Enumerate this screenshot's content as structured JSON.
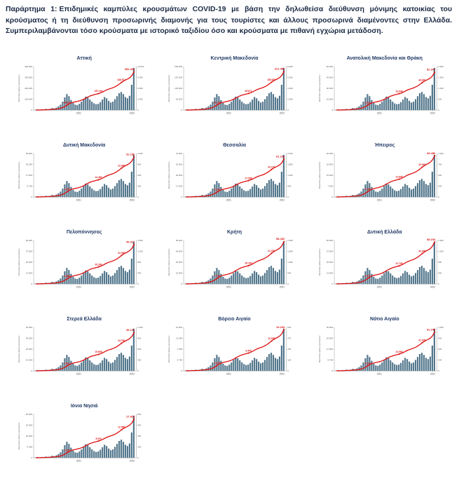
{
  "page": {
    "caption_label": "Παράρτημα 1:",
    "caption_text": "Επιδημικές καμπύλες κρουσμάτων COVID-19 με βάση την δηλωθείσα διεύθυνση μόνιμης κατοικίας του κρούσματος ή τη διεύθυνση προσωρινής διαμονής για τους τουρίστες και άλλους προσωρινά διαμένοντες στην Ελλάδα. Συμπεριλαμβάνονται τόσο κρούσματα με ιστορικό ταξιδίου όσο και κρούσματα με πιθανή εγχώρια μετάδοση."
  },
  "colors": {
    "bar": "#53778c",
    "line": "#dd1111",
    "title": "#1f3864",
    "caption": "#1b2a45",
    "axis": "#9a9a9a",
    "tick_text": "#555555"
  },
  "chart_data": {
    "type": "bar+line",
    "description": "Epidemic curves per Greek region: daily COVID-19 cases as bars (right axis) and cumulative cases as red line with value labels (left axis), timeline 2020 to 2022",
    "grid": "off",
    "legend": "none",
    "ylabel_left": "Αθροιστικός αριθμός κρουσμάτων",
    "x_ticks": [
      {
        "pos": 0.44,
        "label": "2021"
      },
      {
        "pos": 0.96,
        "label": "2022"
      }
    ],
    "label_indices": [
      15,
      30,
      41,
      47
    ],
    "bar_profile": [
      0.01,
      0.02,
      0.01,
      0.02,
      0.02,
      0.03,
      0.02,
      0.03,
      0.05,
      0.04,
      0.06,
      0.09,
      0.13,
      0.2,
      0.3,
      0.38,
      0.33,
      0.24,
      0.17,
      0.13,
      0.12,
      0.15,
      0.2,
      0.26,
      0.32,
      0.3,
      0.25,
      0.2,
      0.16,
      0.14,
      0.15,
      0.19,
      0.25,
      0.31,
      0.28,
      0.22,
      0.18,
      0.2,
      0.26,
      0.33,
      0.4,
      0.43,
      0.38,
      0.31,
      0.28,
      0.34,
      0.6,
      1.0
    ],
    "line_profile": [
      0.001,
      0.003,
      0.004,
      0.006,
      0.008,
      0.01,
      0.012,
      0.015,
      0.02,
      0.024,
      0.03,
      0.038,
      0.051,
      0.07,
      0.098,
      0.134,
      0.166,
      0.189,
      0.205,
      0.217,
      0.229,
      0.243,
      0.262,
      0.287,
      0.317,
      0.346,
      0.37,
      0.389,
      0.404,
      0.418,
      0.432,
      0.45,
      0.474,
      0.503,
      0.53,
      0.551,
      0.568,
      0.587,
      0.612,
      0.643,
      0.682,
      0.723,
      0.759,
      0.788,
      0.815,
      0.848,
      0.905,
      1.0
    ],
    "charts": [
      {
        "title": "Αττική",
        "total": 352418,
        "y_left_max": 400000,
        "y_right_max": 12000,
        "line_labels": [
          "45.813",
          "157.204",
          "246.912",
          "352.418"
        ]
      },
      {
        "title": "Κεντρική Μακεδονία",
        "total": 221456,
        "y_left_max": 250000,
        "y_right_max": 8000,
        "line_labels": [
          "29.145",
          "99.871",
          "155.630",
          "221.456"
        ]
      },
      {
        "title": "Ανατολική Μακεδονία και Θράκη",
        "total": 52347,
        "y_left_max": 60000,
        "y_right_max": 2000,
        "line_labels": [
          "6.912",
          "23.540",
          "36.897",
          "52.347"
        ]
      },
      {
        "title": "Δυτική Μακεδονία",
        "total": 32156,
        "y_left_max": 35000,
        "y_right_max": 1200,
        "line_labels": [
          "4.251",
          "14.482",
          "22.690",
          "32.156"
        ]
      },
      {
        "title": "Θεσσαλία",
        "total": 61234,
        "y_left_max": 70000,
        "y_right_max": 2400,
        "line_labels": [
          "8.073",
          "27.558",
          "43.179",
          "61.234"
        ]
      },
      {
        "title": "Ήπειρος",
        "total": 28456,
        "y_left_max": 30000,
        "y_right_max": 1000,
        "line_labels": [
          "3.762",
          "12.805",
          "20.063",
          "28.456"
        ]
      },
      {
        "title": "Πελοπόννησος",
        "total": 45321,
        "y_left_max": 50000,
        "y_right_max": 1600,
        "line_labels": [
          "5.988",
          "20.394",
          "31.952",
          "45.321"
        ]
      },
      {
        "title": "Κρήτη",
        "total": 58432,
        "y_left_max": 60000,
        "y_right_max": 2000,
        "line_labels": [
          "7.713",
          "26.294",
          "41.201",
          "58.432"
        ]
      },
      {
        "title": "Δυτική Ελλάδα",
        "total": 48234,
        "y_left_max": 50000,
        "y_right_max": 1600,
        "line_labels": [
          "6.371",
          "21.705",
          "34.005",
          "48.234"
        ]
      },
      {
        "title": "Στερεά Ελλάδα",
        "total": 35123,
        "y_left_max": 40000,
        "y_right_max": 1200,
        "line_labels": [
          "4.641",
          "15.805",
          "24.762",
          "35.123"
        ]
      },
      {
        "title": "Βόρειο Αιγαίο",
        "total": 14234,
        "y_left_max": 15000,
        "y_right_max": 500,
        "line_labels": [
          "1.879",
          "6.405",
          "10.035",
          "14.234"
        ]
      },
      {
        "title": "Νότιο Αιγαίο",
        "total": 31245,
        "y_left_max": 35000,
        "y_right_max": 1200,
        "line_labels": [
          "4.124",
          "14.060",
          "22.028",
          "31.245"
        ]
      },
      {
        "title": "Ιόνια Νησιά",
        "total": 17823,
        "y_left_max": 20000,
        "y_right_max": 600,
        "line_labels": [
          "2.353",
          "8.020",
          "12.565",
          "17.823"
        ]
      }
    ]
  }
}
